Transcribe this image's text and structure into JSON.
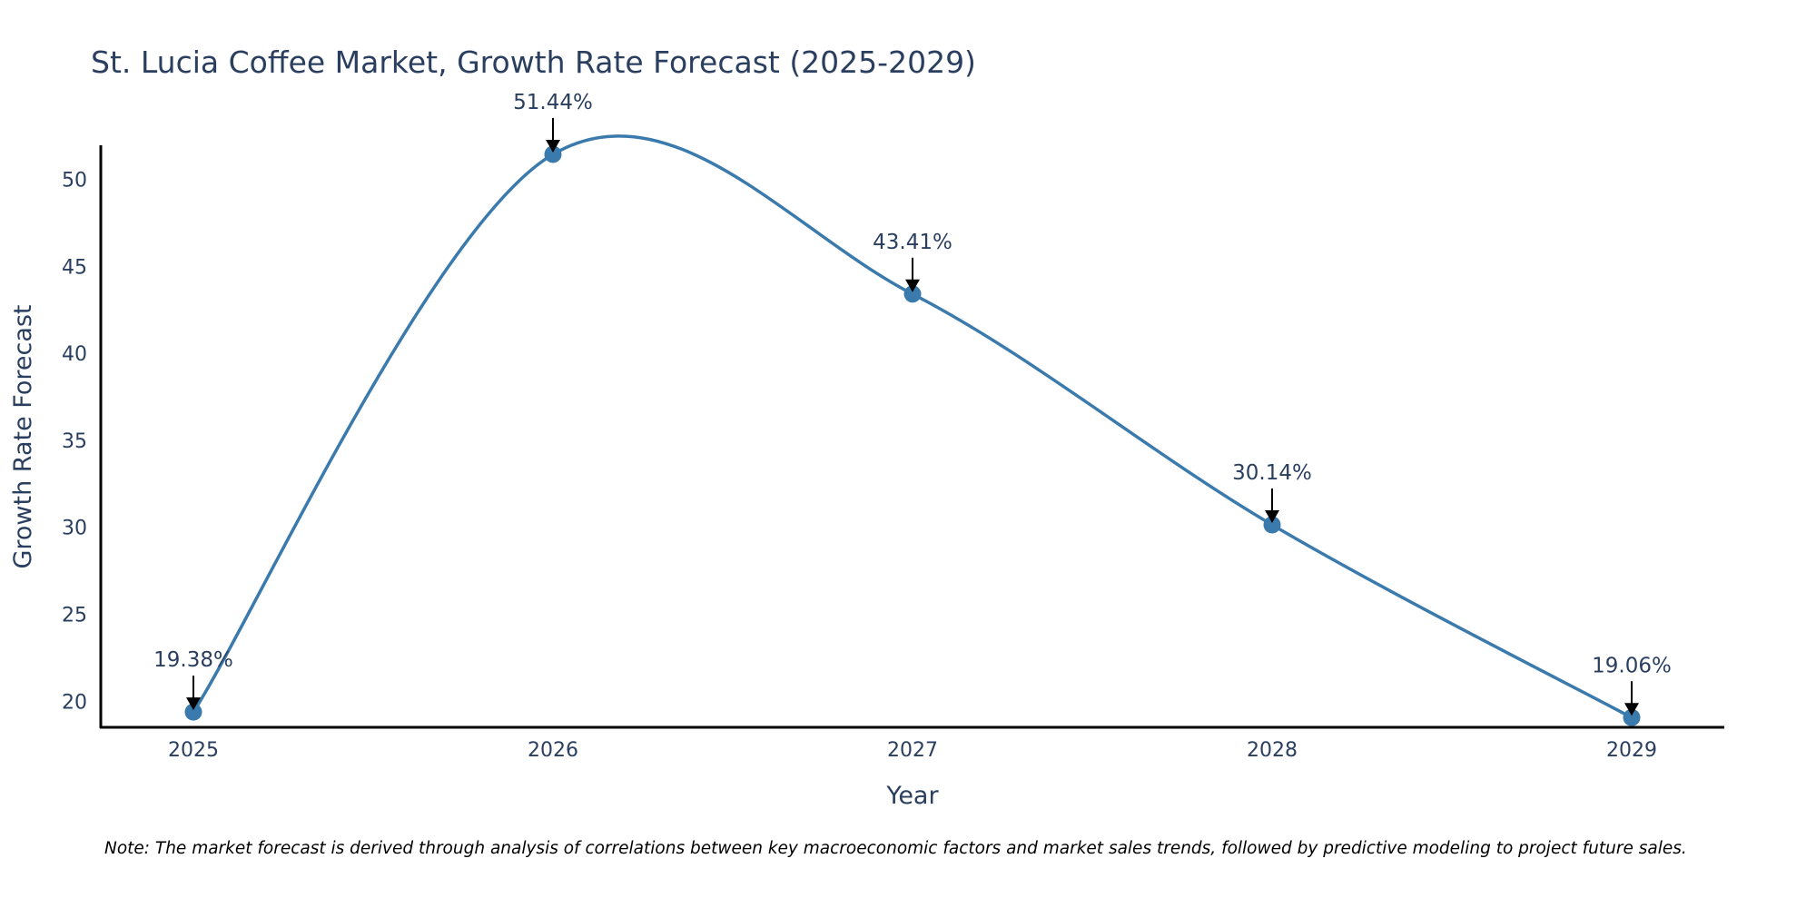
{
  "chart_data": {
    "type": "line",
    "title": "St. Lucia Coffee Market, Growth Rate Forecast (2025-2029)",
    "xlabel": "Year",
    "ylabel": "Growth Rate Forecast",
    "categories": [
      "2025",
      "2026",
      "2027",
      "2028",
      "2029"
    ],
    "series": [
      {
        "name": "Growth Rate Forecast",
        "values": [
          19.38,
          51.44,
          43.41,
          30.14,
          19.06
        ],
        "labels": [
          "19.38%",
          "51.44%",
          "43.41%",
          "30.14%",
          "19.06%"
        ]
      }
    ],
    "ylim": [
      18.5,
      51.96
    ],
    "yticks": [
      20,
      25,
      30,
      35,
      40,
      45,
      50
    ],
    "line_shape": "spline",
    "grid": false,
    "line_color": "#3a7aac",
    "marker_color": "#3a7aac",
    "note": "Note: The market forecast is derived through analysis of correlations between key macroeconomic factors and market sales trends, followed by predictive modeling to project future sales."
  }
}
